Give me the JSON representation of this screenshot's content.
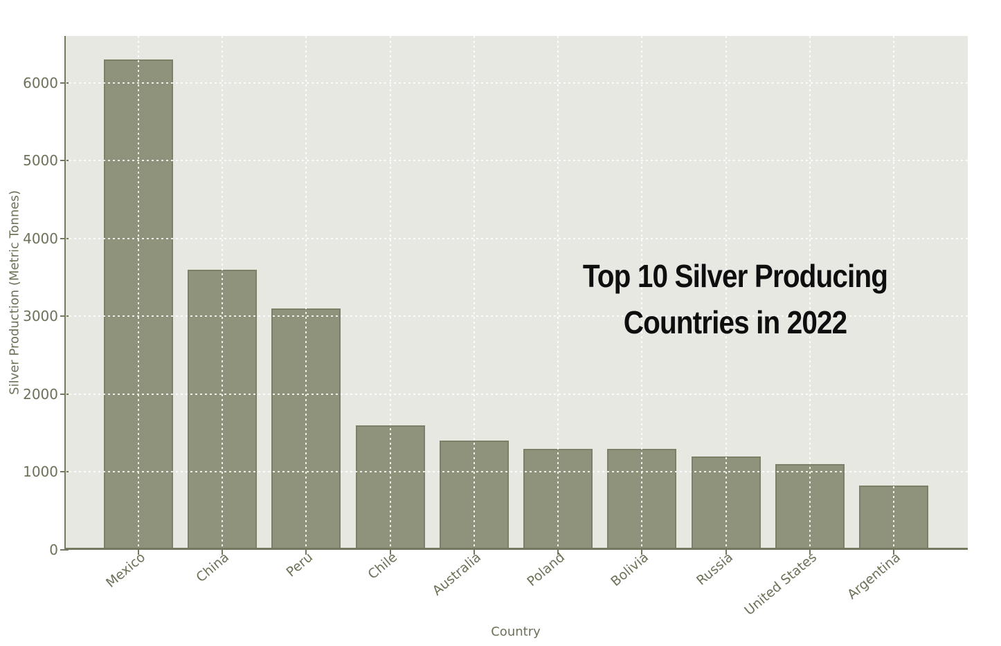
{
  "chart_data": {
    "type": "bar",
    "title": "Top 10 Silver Producing Countries in 2022",
    "xlabel": "Country",
    "ylabel": "Silver Production (Metric Tonnes)",
    "categories": [
      "Mexico",
      "China",
      "Peru",
      "Chile",
      "Australia",
      "Poland",
      "Bolivia",
      "Russia",
      "United States",
      "Argentina"
    ],
    "values": [
      6300,
      3600,
      3100,
      1600,
      1400,
      1300,
      1300,
      1200,
      1100,
      830
    ],
    "ylim": [
      0,
      6600
    ],
    "yticks": [
      0,
      1000,
      2000,
      3000,
      4000,
      5000,
      6000
    ],
    "grid": "white dotted horizontal and vertical gridlines drawn over bars",
    "legend": "none",
    "x_tick_rotation_deg": -40
  },
  "title": {
    "line1": "Top 10 Silver Producing",
    "line2": "Countries in 2022"
  },
  "colors": {
    "bar": "#8F937B",
    "bar_edge": "#7C8067",
    "plot_bg": "#E7E8E2",
    "figure_bg": "#FFFFFF",
    "axis": "#75785F",
    "tick_label": "#6E7157",
    "title_text": "#0E0E0E",
    "gridline": "#FFFFFF"
  }
}
